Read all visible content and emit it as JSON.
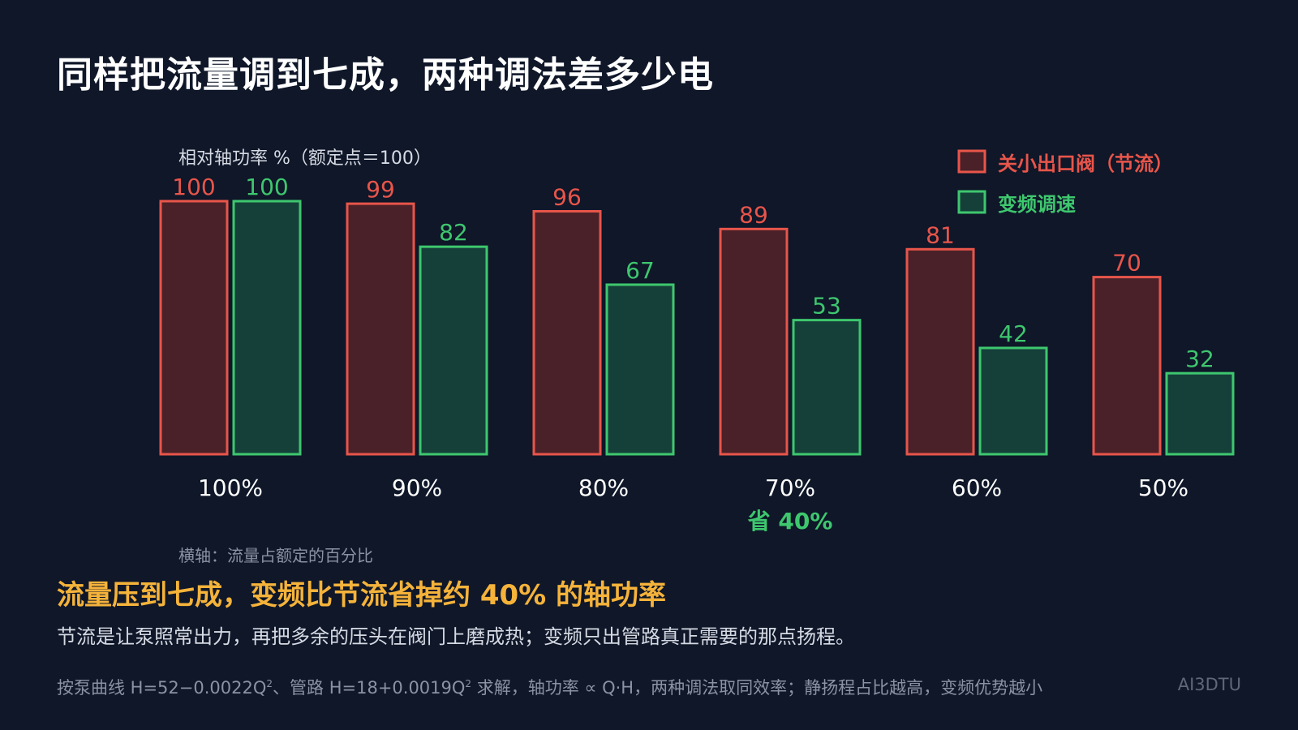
{
  "page": {
    "title": "同样把流量调到七成，两种调法差多少电",
    "headline": "流量压到七成，变频比节流省掉约 40% 的轴功率",
    "body": "节流是让泵照常出力，再把多余的压头在阀门上磨成热；变频只出管路真正需要的那点扬程。",
    "footnote": {
      "part1": "按泵曲线 H=52−0.0022Q",
      "sup1": "2",
      "part2": "、管路 H=18+0.0019Q",
      "sup2": "2",
      "part3": " 求解，轴功率 ∝ Q·H，两种调法取同效率；静扬程占比越高，变频优势越小"
    },
    "brand": "AI3DTU"
  },
  "chart_data": {
    "type": "bar",
    "ylabel": "相对轴功率 %（额定点＝100）",
    "xlabel": "横轴：流量占额定的百分比",
    "categories": [
      "100%",
      "90%",
      "80%",
      "70%",
      "60%",
      "50%"
    ],
    "series": [
      {
        "name": "关小出口阀（节流）",
        "values": [
          100,
          99,
          96,
          89,
          81,
          70
        ],
        "stroke": "#e8554a",
        "fill": "#4a2128"
      },
      {
        "name": "变频调速",
        "values": [
          100,
          82,
          67,
          53,
          42,
          32
        ],
        "stroke": "#3ec76e",
        "fill": "#15403a"
      }
    ],
    "ylim": [
      0,
      100
    ],
    "legend": "top-right",
    "grid": false,
    "annotation": {
      "category": "70%",
      "text": "省 40%",
      "color": "#3ec76e"
    }
  }
}
